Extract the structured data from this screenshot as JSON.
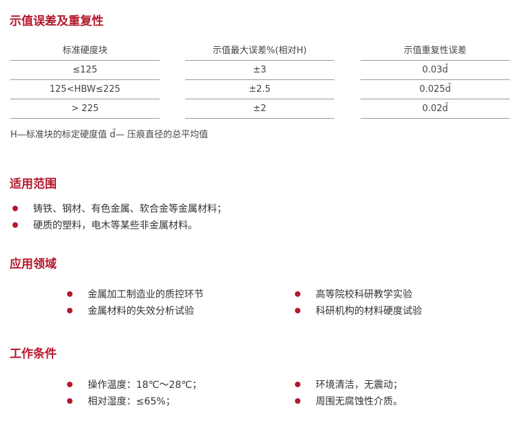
{
  "section1": {
    "title": "示值误差及重复性",
    "table": {
      "headers": [
        "标准硬度块",
        "示值最大误差%(相对H)",
        "示值重复性误差"
      ],
      "rows": [
        [
          "≤125",
          "±3",
          "0.03d̄"
        ],
        [
          "125<HBW≤225",
          "±2.5",
          "0.025d̄"
        ],
        [
          "> 225",
          "±2",
          "0.02d̄"
        ]
      ]
    },
    "note": "H—标准块的标定硬度值  d̄— 压痕直径的总平均值"
  },
  "section2": {
    "title": "适用范围",
    "items": [
      "铸铁、钢材、有色金属、软合金等金属材料；",
      "硬质的塑料，电木等某些非金属材料。"
    ]
  },
  "section3": {
    "title": "应用领域",
    "items": [
      "金属加工制造业的质控环节",
      "金属材料的失效分析试验",
      "高等院校科研教学实验",
      "科研机构的材料硬度试验"
    ]
  },
  "section4": {
    "title": "工作条件",
    "items": [
      "操作温度：18℃～28℃；",
      "相对湿度：≤65%；",
      "环境清洁，无震动；",
      "周围无腐蚀性介质。"
    ]
  },
  "colors": {
    "accent": "#b5182b"
  }
}
